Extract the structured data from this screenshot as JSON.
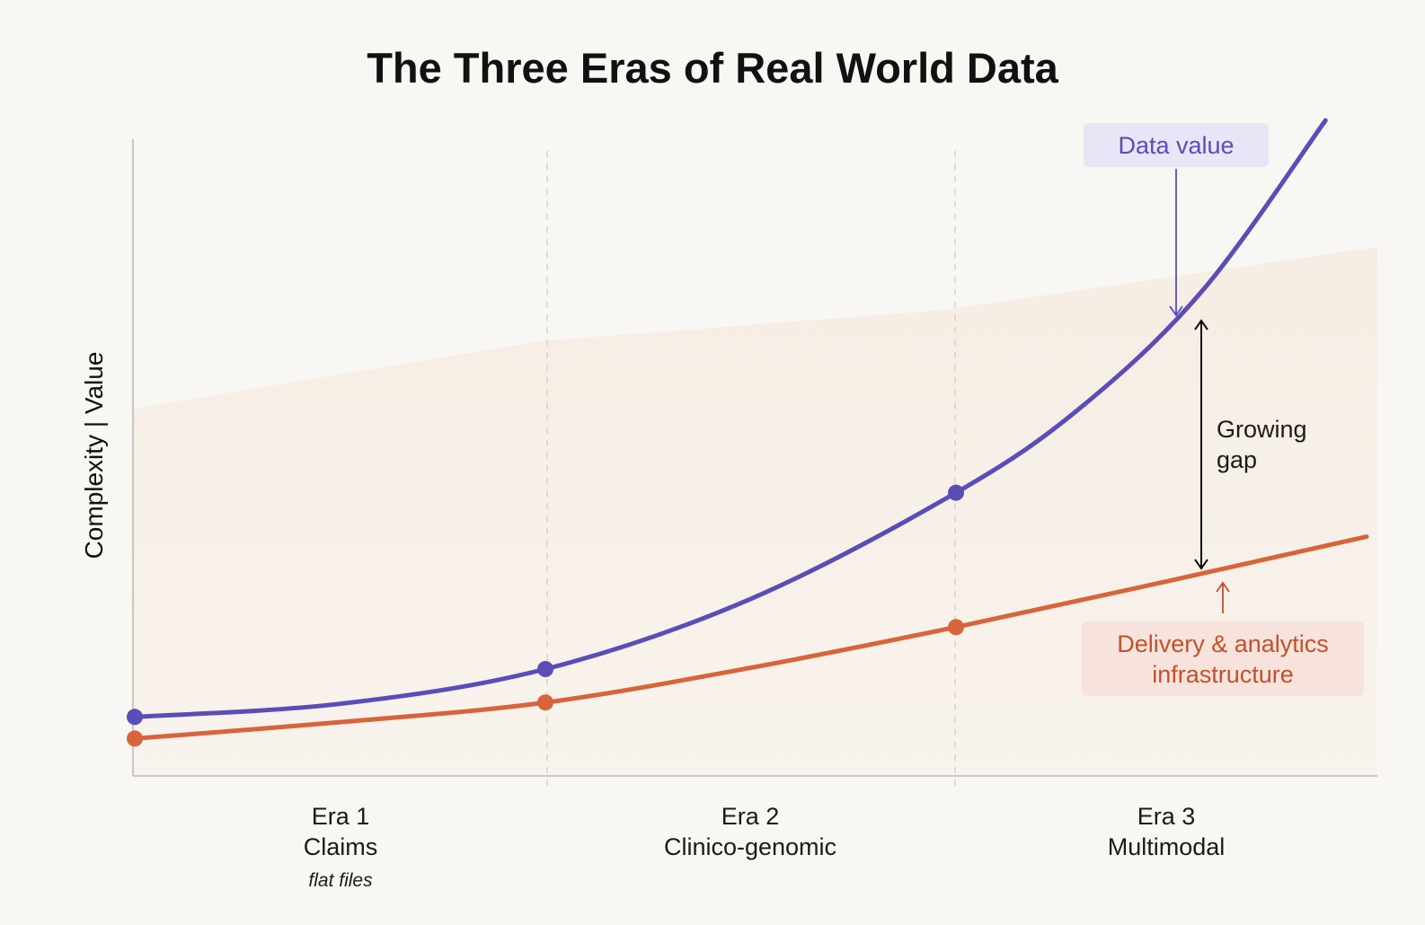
{
  "chart_data": {
    "type": "line",
    "title": "The Three Eras of Real World Data",
    "ylabel": "Complexity | Value",
    "xlabel": "",
    "ylim": [
      0,
      100
    ],
    "xlim": [
      0,
      3
    ],
    "eras": [
      {
        "name": "Era 1",
        "label": "Claims",
        "sublabel": "flat files"
      },
      {
        "name": "Era 2",
        "label": "Clinico-genomic",
        "sublabel": ""
      },
      {
        "name": "Era 3",
        "label": "Multimodal",
        "sublabel": ""
      }
    ],
    "series": [
      {
        "name": "Data value",
        "color": "#5a4db8",
        "points": [
          [
            0,
            9
          ],
          [
            1,
            16.3
          ],
          [
            2,
            43.2
          ]
        ],
        "curve": [
          [
            0,
            9
          ],
          [
            0.5,
            11
          ],
          [
            1,
            16.3
          ],
          [
            1.5,
            27
          ],
          [
            2,
            43.2
          ],
          [
            2.3,
            56
          ],
          [
            2.6,
            74
          ],
          [
            2.9,
            100
          ]
        ]
      },
      {
        "name": "Delivery & analytics infrastructure",
        "color": "#d9633a",
        "points": [
          [
            0,
            5.7
          ],
          [
            1,
            11.2
          ],
          [
            2,
            22.7
          ]
        ],
        "curve": [
          [
            0,
            5.7
          ],
          [
            0.5,
            8.2
          ],
          [
            1,
            11.2
          ],
          [
            1.5,
            16.5
          ],
          [
            2,
            22.7
          ],
          [
            2.5,
            29.5
          ],
          [
            3,
            36.5
          ]
        ]
      }
    ],
    "annotations": {
      "gap_label": [
        "Growing",
        "gap"
      ]
    },
    "grid": false
  }
}
